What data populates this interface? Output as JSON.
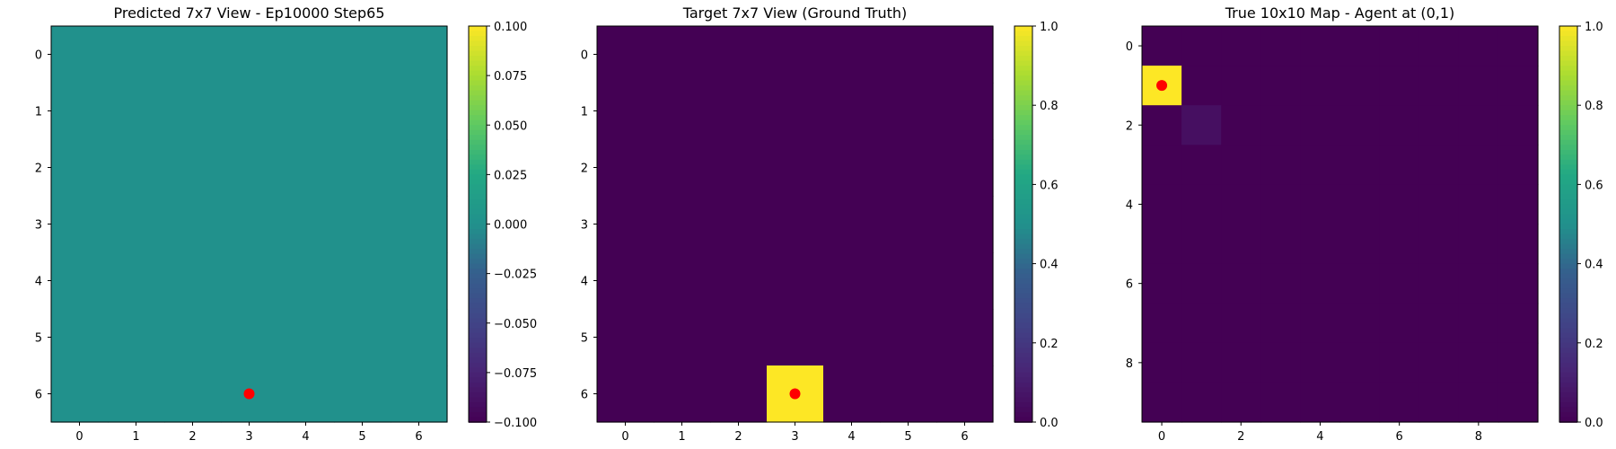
{
  "chart_data": [
    {
      "type": "heatmap",
      "title": "Predicted 7x7 View - Ep10000 Step65",
      "xlabel": "",
      "ylabel": "",
      "rows": 7,
      "cols": 7,
      "x_ticks": [
        0,
        1,
        2,
        3,
        4,
        5,
        6
      ],
      "y_ticks": [
        0,
        1,
        2,
        3,
        4,
        5,
        6
      ],
      "values": [
        [
          0,
          0,
          0,
          0,
          0,
          0,
          0
        ],
        [
          0,
          0,
          0,
          0,
          0,
          0,
          0
        ],
        [
          0,
          0,
          0,
          0,
          0,
          0,
          0
        ],
        [
          0,
          0,
          0,
          0,
          0,
          0,
          0
        ],
        [
          0,
          0,
          0,
          0,
          0,
          0,
          0
        ],
        [
          0,
          0,
          0,
          0,
          0,
          0,
          0
        ],
        [
          0,
          0,
          0,
          0,
          0,
          0,
          0
        ]
      ],
      "vmin": -0.1,
      "vmax": 0.1,
      "colorbar_ticks": [
        0.1,
        0.075,
        0.05,
        0.025,
        0.0,
        -0.025,
        -0.05,
        -0.075,
        -0.1
      ],
      "colorbar_labels": [
        "0.100",
        "0.075",
        "0.050",
        "0.025",
        "0.000",
        "−0.025",
        "−0.050",
        "−0.075",
        "−0.100"
      ],
      "marker": {
        "x": 3,
        "y": 6,
        "color": "#ff0000"
      },
      "colormap": "viridis"
    },
    {
      "type": "heatmap",
      "title": "Target 7x7 View (Ground Truth)",
      "xlabel": "",
      "ylabel": "",
      "rows": 7,
      "cols": 7,
      "x_ticks": [
        0,
        1,
        2,
        3,
        4,
        5,
        6
      ],
      "y_ticks": [
        0,
        1,
        2,
        3,
        4,
        5,
        6
      ],
      "values": [
        [
          0,
          0,
          0,
          0,
          0,
          0,
          0
        ],
        [
          0,
          0,
          0,
          0,
          0,
          0,
          0
        ],
        [
          0,
          0,
          0,
          0,
          0,
          0,
          0
        ],
        [
          0,
          0,
          0,
          0,
          0,
          0,
          0
        ],
        [
          0,
          0,
          0,
          0,
          0,
          0,
          0
        ],
        [
          0,
          0,
          0,
          0,
          0,
          0,
          0
        ],
        [
          0,
          0,
          0,
          1,
          0,
          0,
          0
        ]
      ],
      "vmin": 0.0,
      "vmax": 1.0,
      "colorbar_ticks": [
        1.0,
        0.8,
        0.6,
        0.4,
        0.2,
        0.0
      ],
      "colorbar_labels": [
        "1.0",
        "0.8",
        "0.6",
        "0.4",
        "0.2",
        "0.0"
      ],
      "marker": {
        "x": 3,
        "y": 6,
        "color": "#ff0000"
      },
      "colormap": "viridis"
    },
    {
      "type": "heatmap",
      "title": "True 10x10 Map - Agent at (0,1)",
      "xlabel": "",
      "ylabel": "",
      "rows": 10,
      "cols": 10,
      "x_ticks": [
        0,
        2,
        4,
        6,
        8
      ],
      "y_ticks": [
        0,
        2,
        4,
        6,
        8
      ],
      "values": [
        [
          0,
          0,
          0,
          0,
          0,
          0,
          0,
          0,
          0,
          0
        ],
        [
          1,
          0,
          0,
          0,
          0,
          0,
          0,
          0,
          0,
          0
        ],
        [
          0,
          0.05,
          0,
          0,
          0,
          0,
          0,
          0,
          0,
          0
        ],
        [
          0,
          0,
          0,
          0,
          0,
          0,
          0,
          0,
          0,
          0
        ],
        [
          0,
          0,
          0,
          0,
          0,
          0,
          0,
          0,
          0,
          0
        ],
        [
          0,
          0,
          0,
          0,
          0,
          0,
          0,
          0,
          0,
          0
        ],
        [
          0,
          0,
          0,
          0,
          0,
          0,
          0,
          0,
          0,
          0
        ],
        [
          0,
          0,
          0,
          0,
          0,
          0,
          0,
          0,
          0,
          0
        ],
        [
          0,
          0,
          0,
          0,
          0,
          0,
          0,
          0,
          0,
          0
        ],
        [
          0,
          0,
          0,
          0,
          0,
          0,
          0,
          0,
          0,
          0
        ]
      ],
      "vmin": 0.0,
      "vmax": 1.0,
      "colorbar_ticks": [
        1.0,
        0.8,
        0.6,
        0.4,
        0.2,
        0.0
      ],
      "colorbar_labels": [
        "1.0",
        "0.8",
        "0.6",
        "0.4",
        "0.2",
        "0.0"
      ],
      "marker": {
        "x": 0,
        "y": 1,
        "color": "#ff0000"
      },
      "colormap": "viridis"
    }
  ]
}
